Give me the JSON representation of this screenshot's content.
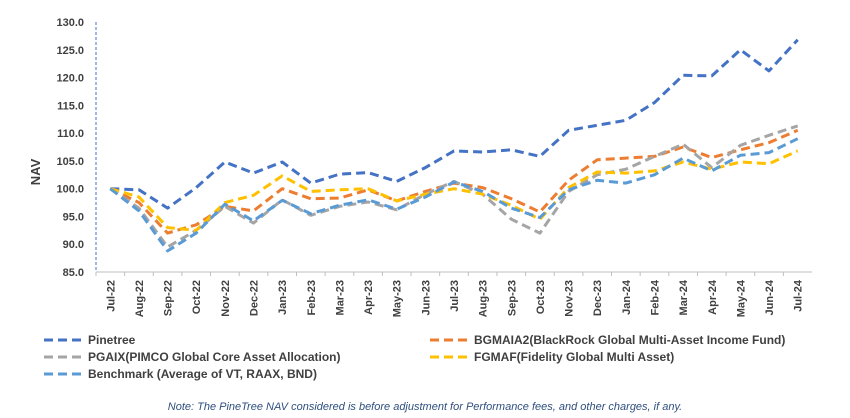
{
  "chart_data": {
    "type": "line",
    "ylabel": "NAV",
    "ylim": [
      85,
      130
    ],
    "yticks": [
      "130.0",
      "125.0",
      "120.0",
      "115.0",
      "110.0",
      "105.0",
      "100.0",
      "95.0",
      "90.0",
      "85.0"
    ],
    "x": [
      "Jul-22",
      "Aug-22",
      "Sep-22",
      "Oct-22",
      "Nov-22",
      "Dec-22",
      "Jan-23",
      "Feb-23",
      "Mar-23",
      "Apr-23",
      "May-23",
      "Jun-23",
      "Jul-23",
      "Aug-23",
      "Sep-23",
      "Oct-23",
      "Nov-23",
      "Dec-23",
      "Jan-24",
      "Feb-24",
      "Mar-24",
      "Apr-24",
      "May-24",
      "Jun-24",
      "Jul-24"
    ],
    "legend_position": "bottom",
    "series": [
      {
        "name": "Pinetree",
        "color": "#4472C4",
        "values": [
          100.0,
          99.8,
          96.5,
          100.2,
          104.8,
          102.8,
          104.8,
          101.0,
          102.6,
          102.9,
          101.3,
          103.8,
          106.8,
          106.6,
          107.0,
          105.8,
          110.5,
          111.4,
          112.3,
          115.5,
          120.4,
          120.3,
          125.0,
          121.2,
          126.8
        ]
      },
      {
        "name": "BGMAIA2(BlackRock Global Multi-Asset Income Fund)",
        "color": "#ED7D31",
        "values": [
          100.0,
          97.5,
          92.0,
          93.5,
          96.8,
          96.0,
          100.0,
          98.2,
          98.3,
          99.8,
          97.8,
          99.5,
          101.0,
          100.2,
          98.2,
          95.8,
          101.5,
          105.2,
          105.5,
          105.8,
          107.5,
          105.6,
          107.0,
          108.3,
          110.5
        ]
      },
      {
        "name": "PGAIX(PIMCO Global Core Asset Allocation)",
        "color": "#A5A5A5",
        "values": [
          100.0,
          96.5,
          89.5,
          92.5,
          96.8,
          93.8,
          98.0,
          95.2,
          96.8,
          97.6,
          96.2,
          99.0,
          101.3,
          99.0,
          94.5,
          92.0,
          99.5,
          102.5,
          103.5,
          105.8,
          108.0,
          103.8,
          107.8,
          109.6,
          111.3
        ]
      },
      {
        "name": "FGMAF(Fidelity Global Multi Asset)",
        "color": "#FFC000",
        "values": [
          100.0,
          98.5,
          93.0,
          92.5,
          97.5,
          98.8,
          102.3,
          99.5,
          99.8,
          100.0,
          97.8,
          99.0,
          100.0,
          99.0,
          97.0,
          94.5,
          100.2,
          103.0,
          102.8,
          103.2,
          104.8,
          103.5,
          104.8,
          104.5,
          106.8
        ]
      },
      {
        "name": "Benchmark (Average of VT, RAAX, BND)",
        "color": "#5B9BD5",
        "values": [
          100.0,
          96.0,
          88.8,
          92.0,
          97.2,
          94.2,
          97.9,
          95.5,
          97.0,
          98.0,
          96.3,
          98.5,
          101.2,
          99.5,
          96.5,
          94.8,
          99.8,
          101.5,
          101.0,
          102.5,
          105.5,
          103.2,
          106.0,
          106.5,
          109.0
        ]
      }
    ]
  },
  "note": "Note: The PineTree NAV considered is before adjustment for Performance fees, and other charges, if any."
}
